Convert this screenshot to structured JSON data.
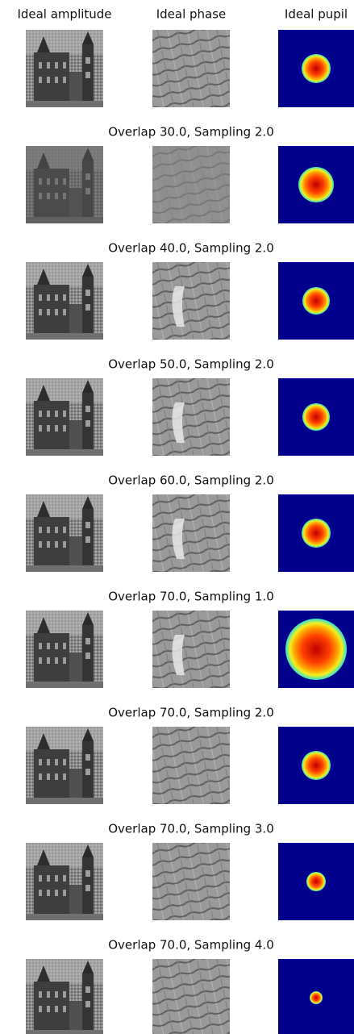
{
  "header": {
    "columns": [
      "Ideal amplitude",
      "Ideal phase",
      "Ideal pupil"
    ]
  },
  "rows": [
    {
      "title": "Overlap 30.0, Sampling 2.0"
    },
    {
      "title": "Overlap 40.0, Sampling 2.0"
    },
    {
      "title": "Overlap 50.0, Sampling 2.0"
    },
    {
      "title": "Overlap 60.0, Sampling 2.0"
    },
    {
      "title": "Overlap 70.0, Sampling 1.0"
    },
    {
      "title": "Overlap 70.0, Sampling 2.0"
    },
    {
      "title": "Overlap 70.0, Sampling 3.0"
    },
    {
      "title": "Overlap 70.0, Sampling 4.0"
    }
  ]
}
